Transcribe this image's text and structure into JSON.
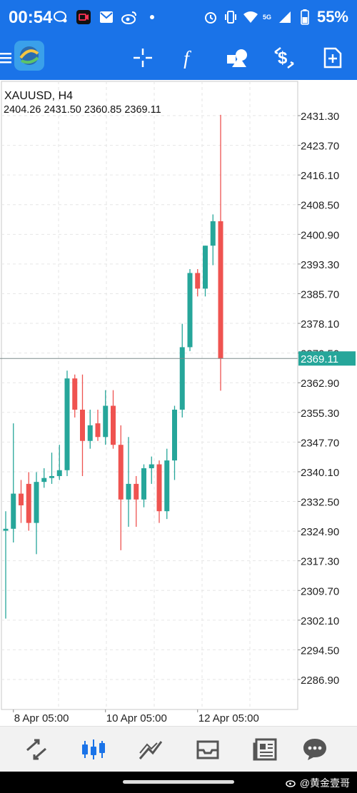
{
  "status_bar": {
    "time": "00:54",
    "battery": "55%",
    "network": "5G",
    "left_icons": [
      "chat-bubble-icon",
      "video-record-icon",
      "mail-icon",
      "weibo-icon",
      "dot-icon"
    ],
    "right_icons": [
      "alarm-icon",
      "vibrate-icon",
      "wifi-icon",
      "signal-icon",
      "battery-icon"
    ]
  },
  "toolbar": {
    "items": [
      "menu-icon",
      "app-logo-icon",
      "crosshair-icon",
      "function-icon",
      "objects-icon",
      "trade-icon",
      "new-order-icon"
    ]
  },
  "chart": {
    "symbol": "XAUUSD, H4",
    "ohlc": "2404.26 2431.50 2360.85 2369.11",
    "current_price": "2369.11",
    "colors": {
      "bull": "#26a69a",
      "bear": "#ef5350",
      "grid": "#e6e6e6",
      "price_line": "#26a69a"
    }
  },
  "chart_data": {
    "type": "candlestick",
    "title": "XAUUSD, H4",
    "yticks": [
      2431.3,
      2423.7,
      2416.1,
      2408.5,
      2400.9,
      2393.3,
      2385.7,
      2378.1,
      2370.5,
      2362.9,
      2355.3,
      2347.7,
      2340.1,
      2332.5,
      2324.9,
      2317.3,
      2309.7,
      2302.1,
      2294.5,
      2286.9
    ],
    "ylim": [
      2282.0,
      2435.0
    ],
    "x_labels": [
      {
        "index": 1,
        "label": "8 Apr 05:00"
      },
      {
        "index": 13,
        "label": "10 Apr 05:00"
      },
      {
        "index": 25,
        "label": "12 Apr 05:00"
      }
    ],
    "candles": [
      {
        "o": 2325.0,
        "h": 2330.0,
        "l": 2302.5,
        "c": 2325.5
      },
      {
        "o": 2325.5,
        "h": 2352.5,
        "l": 2322.0,
        "c": 2334.5
      },
      {
        "o": 2334.5,
        "h": 2338.0,
        "l": 2327.0,
        "c": 2331.5
      },
      {
        "o": 2337.0,
        "h": 2340.0,
        "l": 2325.0,
        "c": 2327.0
      },
      {
        "o": 2327.0,
        "h": 2340.0,
        "l": 2319.0,
        "c": 2337.5
      },
      {
        "o": 2337.5,
        "h": 2341.0,
        "l": 2336.0,
        "c": 2338.5
      },
      {
        "o": 2338.5,
        "h": 2345.0,
        "l": 2337.0,
        "c": 2339.0
      },
      {
        "o": 2339.0,
        "h": 2347.0,
        "l": 2338.0,
        "c": 2340.5
      },
      {
        "o": 2340.5,
        "h": 2366.0,
        "l": 2339.0,
        "c": 2364.0
      },
      {
        "o": 2364.0,
        "h": 2365.0,
        "l": 2354.0,
        "c": 2356.0
      },
      {
        "o": 2356.0,
        "h": 2365.0,
        "l": 2339.0,
        "c": 2348.0
      },
      {
        "o": 2348.0,
        "h": 2356.0,
        "l": 2346.0,
        "c": 2352.0
      },
      {
        "o": 2352.5,
        "h": 2356.0,
        "l": 2348.0,
        "c": 2349.0
      },
      {
        "o": 2349.0,
        "h": 2361.0,
        "l": 2347.0,
        "c": 2357.0
      },
      {
        "o": 2357.0,
        "h": 2361.0,
        "l": 2346.0,
        "c": 2347.0
      },
      {
        "o": 2347.0,
        "h": 2352.0,
        "l": 2320.0,
        "c": 2333.0
      },
      {
        "o": 2333.0,
        "h": 2349.0,
        "l": 2326.0,
        "c": 2337.0
      },
      {
        "o": 2337.0,
        "h": 2339.0,
        "l": 2326.0,
        "c": 2333.0
      },
      {
        "o": 2333.0,
        "h": 2342.0,
        "l": 2331.0,
        "c": 2341.0
      },
      {
        "o": 2341.0,
        "h": 2344.0,
        "l": 2337.0,
        "c": 2342.0
      },
      {
        "o": 2342.0,
        "h": 2343.0,
        "l": 2327.0,
        "c": 2330.0
      },
      {
        "o": 2330.0,
        "h": 2346.0,
        "l": 2328.0,
        "c": 2343.0
      },
      {
        "o": 2343.0,
        "h": 2357.0,
        "l": 2338.0,
        "c": 2356.0
      },
      {
        "o": 2356.0,
        "h": 2378.0,
        "l": 2354.0,
        "c": 2372.0
      },
      {
        "o": 2372.0,
        "h": 2392.0,
        "l": 2371.0,
        "c": 2391.0
      },
      {
        "o": 2391.0,
        "h": 2392.0,
        "l": 2385.0,
        "c": 2387.0
      },
      {
        "o": 2387.0,
        "h": 2398.0,
        "l": 2385.0,
        "c": 2398.0
      },
      {
        "o": 2398.0,
        "h": 2406.0,
        "l": 2393.0,
        "c": 2404.26
      },
      {
        "o": 2404.26,
        "h": 2431.5,
        "l": 2360.85,
        "c": 2369.11
      }
    ]
  },
  "bottom_nav": {
    "items": [
      "quotes-icon",
      "chart-icon",
      "trade-icon",
      "history-icon",
      "news-icon",
      "messages-icon"
    ],
    "active": 1
  },
  "watermark": "@黄金壹哥"
}
